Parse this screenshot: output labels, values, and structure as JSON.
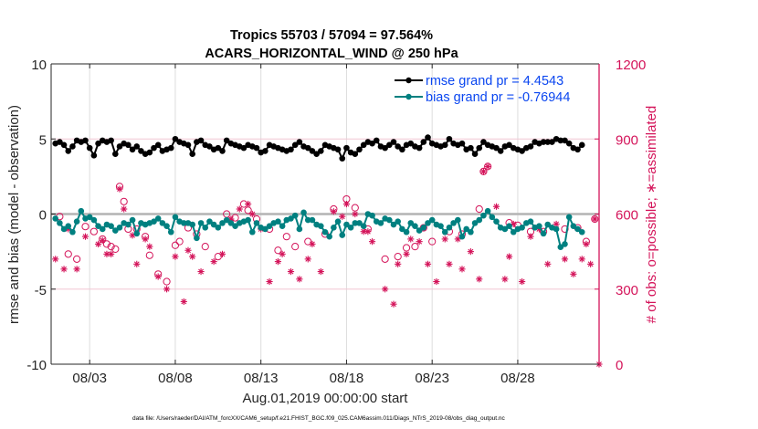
{
  "chart_data": {
    "type": "line",
    "title": [
      "Tropics 55703 / 57094 = 97.564%",
      "ACARS_HORIZONTAL_WIND @ 250 hPa"
    ],
    "xlabel": "Aug.01,2019 00:00:00 start",
    "ylabel": "rmse and bias (model - observation)",
    "ylabel_right": "# of obs: o=possible; ∗=assimilated",
    "footnote": "data file: /Users/raeder/DAI/ATM_forcXX/CAM6_setup/f.e21.FHIST_BGC.f09_025.CAM6assim.011/Diags_NTrS_2019-08/obs_diag_output.nc",
    "x_unit": "days since Aug.01,2019 00:00:00",
    "xlim": [
      -0.25,
      31.75
    ],
    "ylim": [
      -10,
      10
    ],
    "ylim_right": [
      0,
      1200
    ],
    "xticks": [
      {
        "value": 2,
        "label": "08/03"
      },
      {
        "value": 7,
        "label": "08/08"
      },
      {
        "value": 12,
        "label": "08/13"
      },
      {
        "value": 17,
        "label": "08/18"
      },
      {
        "value": 22,
        "label": "08/23"
      },
      {
        "value": 27,
        "label": "08/28"
      }
    ],
    "yticks": [
      {
        "value": -10,
        "label": "-10"
      },
      {
        "value": -5,
        "label": "-5"
      },
      {
        "value": 0,
        "label": "0"
      },
      {
        "value": 5,
        "label": "5"
      },
      {
        "value": 10,
        "label": "10"
      }
    ],
    "yticks_right": [
      {
        "value": 0,
        "label": "0"
      },
      {
        "value": 300,
        "label": "300"
      },
      {
        "value": 600,
        "label": "600"
      },
      {
        "value": 900,
        "label": "900"
      },
      {
        "value": 1200,
        "label": "1200"
      }
    ],
    "grid": true,
    "legend": {
      "placement": "top-right",
      "entries": [
        {
          "label": "rmse grand pr = 4.4543",
          "color": "#000000"
        },
        {
          "label": "bias grand pr = -0.76944",
          "color": "#008080"
        }
      ]
    },
    "colors": {
      "rmse": "#000000",
      "bias": "#008080",
      "obs": "#d4145a",
      "legend_text": "#0a46f0",
      "zero_line": "#b4b4b4",
      "grid": "#dddddd",
      "grid_right": "#f2c6d4"
    },
    "x_start": 0,
    "x_step": 0.25,
    "series": [
      {
        "name": "rmse",
        "axis": "left",
        "marker": "dot",
        "values": [
          4.7,
          4.8,
          4.6,
          4.2,
          4.5,
          4.9,
          4.8,
          4.9,
          4.4,
          3.9,
          4.7,
          4.9,
          4.8,
          4.9,
          4.0,
          4.5,
          4.7,
          4.6,
          4.3,
          4.5,
          4.2,
          4.0,
          4.1,
          4.4,
          4.6,
          4.2,
          4.3,
          4.4,
          5.0,
          4.8,
          4.7,
          4.6,
          4.0,
          4.8,
          4.9,
          4.6,
          4.5,
          4.3,
          4.4,
          4.2,
          4.9,
          4.7,
          4.6,
          4.5,
          4.4,
          4.6,
          4.5,
          4.4,
          4.1,
          4.2,
          4.6,
          4.5,
          4.4,
          4.3,
          4.2,
          4.3,
          4.6,
          4.8,
          4.5,
          4.4,
          4.2,
          4.0,
          4.2,
          4.6,
          4.5,
          4.4,
          4.3,
          3.7,
          4.4,
          4.1,
          4.0,
          4.3,
          4.6,
          4.8,
          4.7,
          4.9,
          4.5,
          4.4,
          4.6,
          4.8,
          4.5,
          4.3,
          4.6,
          4.7,
          4.5,
          4.4,
          4.8,
          5.1,
          4.7,
          4.6,
          4.5,
          4.6,
          5.0,
          4.7,
          4.6,
          4.7,
          4.3,
          4.4,
          4.0,
          4.4,
          4.8,
          4.6,
          4.5,
          4.4,
          4.2,
          4.5,
          4.6,
          4.4,
          4.3,
          4.2,
          4.4,
          4.5,
          4.8,
          4.7,
          4.8,
          4.8,
          4.8,
          5.0,
          4.9,
          4.9,
          4.7,
          4.4,
          4.3,
          4.6
        ]
      },
      {
        "name": "bias",
        "axis": "left",
        "marker": "dot",
        "values": [
          -0.3,
          -0.6,
          -1.0,
          -0.8,
          -1.2,
          -0.5,
          0.2,
          -0.3,
          -0.2,
          -0.4,
          -0.8,
          -1.0,
          -0.7,
          -0.8,
          -1.1,
          -0.9,
          -0.6,
          -0.7,
          -0.4,
          -1.3,
          -0.6,
          -0.7,
          -0.6,
          -0.5,
          -0.3,
          -0.6,
          -0.8,
          -1.2,
          -0.2,
          -0.5,
          -0.6,
          -0.6,
          -0.7,
          -1.6,
          -0.6,
          -0.9,
          -0.5,
          -0.7,
          -0.9,
          -0.6,
          -0.4,
          -0.6,
          -0.8,
          -0.6,
          -0.5,
          -0.4,
          -1.2,
          -0.6,
          -0.9,
          -1.0,
          -0.8,
          -0.6,
          -0.5,
          -0.8,
          -0.4,
          -0.3,
          -0.1,
          -1.0,
          0.1,
          -0.4,
          -0.4,
          -0.7,
          -0.8,
          -1.2,
          -1.5,
          -0.9,
          -0.5,
          -1.4,
          -0.7,
          -0.9,
          -0.6,
          -0.6,
          -0.8,
          0.0,
          -0.1,
          -0.5,
          -0.6,
          -0.3,
          -0.4,
          -0.7,
          -0.5,
          -1.0,
          -1.2,
          -0.6,
          -0.8,
          -1.1,
          -0.9,
          -0.6,
          -0.4,
          -0.7,
          -0.8,
          -1.2,
          -0.9,
          -0.6,
          -0.4,
          -1.5,
          -1.0,
          -1.2,
          -0.6,
          -0.4,
          -0.1,
          0.2,
          -0.2,
          -0.5,
          -0.9,
          -1.0,
          -0.8,
          -1.2,
          -1.0,
          -0.9,
          -0.6,
          -0.5,
          -0.9,
          -0.8,
          -1.3,
          -0.7,
          -0.9,
          -1.0,
          -2.2,
          -2.0,
          -0.2,
          -0.8,
          -1.0,
          -1.2
        ]
      },
      {
        "name": "obs_possible",
        "axis": "right",
        "marker": "circle",
        "points": [
          [
            0.25,
            590
          ],
          [
            0.75,
            440
          ],
          [
            1.25,
            420
          ],
          [
            1.75,
            550
          ],
          [
            2.25,
            530
          ],
          [
            2.75,
            500
          ],
          [
            3.0,
            480
          ],
          [
            3.25,
            470
          ],
          [
            3.5,
            460
          ],
          [
            3.75,
            710
          ],
          [
            4.0,
            650
          ],
          [
            4.25,
            540
          ],
          [
            4.75,
            540
          ],
          [
            5.25,
            510
          ],
          [
            5.5,
            435
          ],
          [
            6.0,
            360
          ],
          [
            6.5,
            330
          ],
          [
            7.0,
            475
          ],
          [
            7.25,
            490
          ],
          [
            7.75,
            545
          ],
          [
            8.25,
            520
          ],
          [
            8.75,
            470
          ],
          [
            9.5,
            430
          ],
          [
            10.0,
            600
          ],
          [
            10.5,
            585
          ],
          [
            11.0,
            640
          ],
          [
            11.25,
            615
          ],
          [
            11.75,
            580
          ],
          [
            12.5,
            540
          ],
          [
            13.0,
            455
          ],
          [
            13.5,
            510
          ],
          [
            14.0,
            470
          ],
          [
            14.75,
            490
          ],
          [
            15.75,
            520
          ],
          [
            16.25,
            620
          ],
          [
            17.0,
            660
          ],
          [
            17.5,
            625
          ],
          [
            18.25,
            540
          ],
          [
            19.25,
            420
          ],
          [
            20.0,
            430
          ],
          [
            20.5,
            465
          ],
          [
            21.0,
            470
          ],
          [
            21.5,
            545
          ],
          [
            22.0,
            490
          ],
          [
            23.0,
            530
          ],
          [
            23.75,
            520
          ],
          [
            24.75,
            620
          ],
          [
            25.0,
            770
          ],
          [
            25.25,
            790
          ],
          [
            26.5,
            565
          ],
          [
            27.0,
            555
          ],
          [
            27.75,
            530
          ],
          [
            28.5,
            530
          ],
          [
            29.75,
            540
          ],
          [
            30.5,
            545
          ],
          [
            31.0,
            490
          ],
          [
            31.5,
            580
          ]
        ]
      },
      {
        "name": "obs_assimilated",
        "axis": "right",
        "marker": "asterisk",
        "points": [
          [
            0.0,
            420
          ],
          [
            0.5,
            380
          ],
          [
            0.75,
            540
          ],
          [
            1.25,
            380
          ],
          [
            1.75,
            510
          ],
          [
            2.5,
            480
          ],
          [
            2.75,
            495
          ],
          [
            3.0,
            440
          ],
          [
            3.25,
            440
          ],
          [
            3.75,
            700
          ],
          [
            4.0,
            620
          ],
          [
            4.5,
            515
          ],
          [
            4.75,
            400
          ],
          [
            5.25,
            500
          ],
          [
            5.5,
            470
          ],
          [
            6.0,
            350
          ],
          [
            6.5,
            300
          ],
          [
            7.0,
            430
          ],
          [
            7.5,
            250
          ],
          [
            7.75,
            455
          ],
          [
            8.0,
            430
          ],
          [
            8.5,
            370
          ],
          [
            9.25,
            410
          ],
          [
            9.75,
            440
          ],
          [
            10.25,
            580
          ],
          [
            10.75,
            620
          ],
          [
            11.25,
            640
          ],
          [
            11.5,
            600
          ],
          [
            12.0,
            540
          ],
          [
            12.5,
            330
          ],
          [
            13.0,
            410
          ],
          [
            13.25,
            440
          ],
          [
            13.75,
            370
          ],
          [
            14.25,
            340
          ],
          [
            14.75,
            420
          ],
          [
            15.0,
            480
          ],
          [
            15.5,
            370
          ],
          [
            16.25,
            610
          ],
          [
            16.75,
            590
          ],
          [
            17.0,
            640
          ],
          [
            17.5,
            600
          ],
          [
            18.0,
            530
          ],
          [
            18.25,
            530
          ],
          [
            18.5,
            490
          ],
          [
            19.25,
            300
          ],
          [
            19.75,
            240
          ],
          [
            20.0,
            400
          ],
          [
            20.5,
            440
          ],
          [
            20.75,
            500
          ],
          [
            21.25,
            490
          ],
          [
            21.75,
            400
          ],
          [
            22.25,
            330
          ],
          [
            22.75,
            500
          ],
          [
            23.0,
            400
          ],
          [
            23.5,
            500
          ],
          [
            23.75,
            380
          ],
          [
            24.25,
            450
          ],
          [
            24.75,
            340
          ],
          [
            25.0,
            770
          ],
          [
            25.25,
            790
          ],
          [
            25.75,
            630
          ],
          [
            26.25,
            340
          ],
          [
            26.5,
            430
          ],
          [
            26.75,
            560
          ],
          [
            27.25,
            330
          ],
          [
            27.75,
            510
          ],
          [
            28.25,
            540
          ],
          [
            28.75,
            400
          ],
          [
            29.25,
            560
          ],
          [
            29.75,
            420
          ],
          [
            30.25,
            360
          ],
          [
            30.75,
            420
          ],
          [
            31.0,
            480
          ],
          [
            31.25,
            400
          ],
          [
            31.5,
            580
          ],
          [
            31.75,
            0
          ]
        ]
      }
    ]
  }
}
